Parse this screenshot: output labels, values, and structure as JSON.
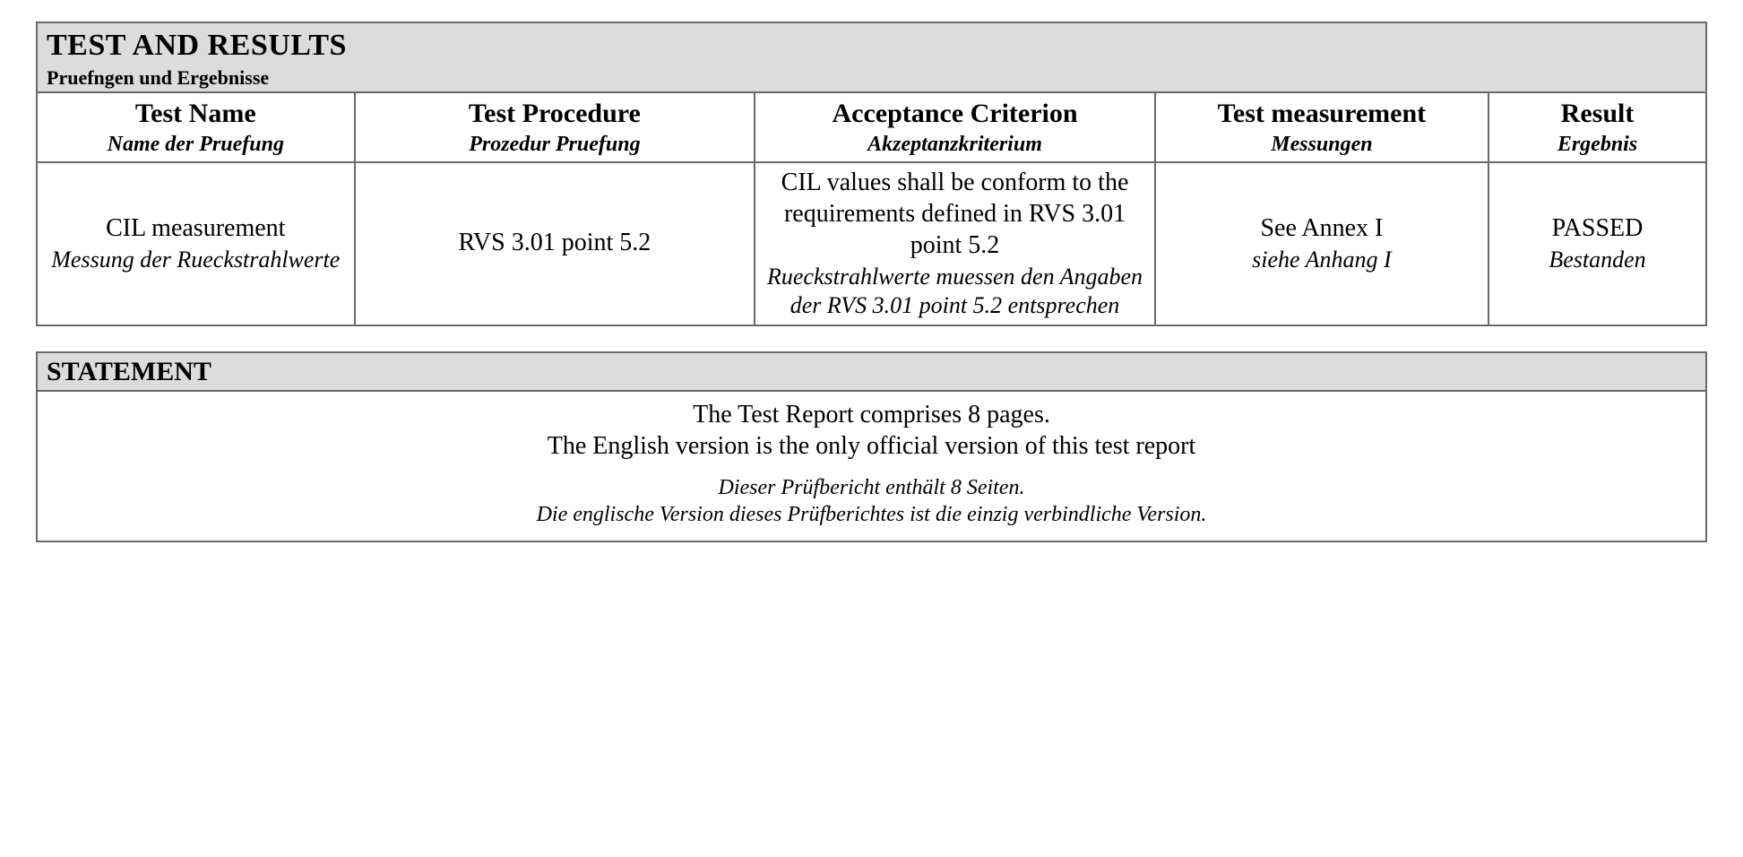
{
  "results_section": {
    "title_en": "TEST AND RESULTS",
    "title_de": "Pruefngen und Ergebnisse",
    "columns": [
      {
        "en": "Test Name",
        "de": "Name der Pruefung"
      },
      {
        "en": "Test Procedure",
        "de": "Prozedur Pruefung"
      },
      {
        "en": "Acceptance Criterion",
        "de": "Akzeptanzkriterium"
      },
      {
        "en": "Test measurement",
        "de": "Messungen"
      },
      {
        "en": "Result",
        "de": "Ergebnis"
      }
    ],
    "rows": [
      {
        "name": {
          "en": "CIL measurement",
          "de": "Messung der Rueckstrahlwerte"
        },
        "procedure": {
          "en": "RVS 3.01 point 5.2",
          "de": ""
        },
        "criterion": {
          "en": "CIL values shall be conform to the requirements defined in RVS 3.01 point 5.2",
          "de": "Rueckstrahlwerte muessen den Angaben der RVS 3.01 point 5.2 entsprechen"
        },
        "measurement": {
          "en": "See Annex I",
          "de": "siehe Anhang I"
        },
        "result": {
          "en": "PASSED",
          "de": "Bestanden"
        }
      }
    ]
  },
  "statement_section": {
    "title": "STATEMENT",
    "en_line1": "The Test Report comprises 8 pages.",
    "en_line2": "The English version is the only official version of this test report",
    "de_line1": "Dieser Prüfbericht enthält 8 Seiten.",
    "de_line2": "Die englische Version dieses Prüfberichtes ist die einzig verbindliche Version."
  },
  "style": {
    "header_bg": "#dcdcdc",
    "border_color": "#6a6a6a",
    "page_bg": "#ffffff",
    "text_color": "#000000",
    "font_family": "Garamond, 'Times New Roman', Times, serif"
  }
}
